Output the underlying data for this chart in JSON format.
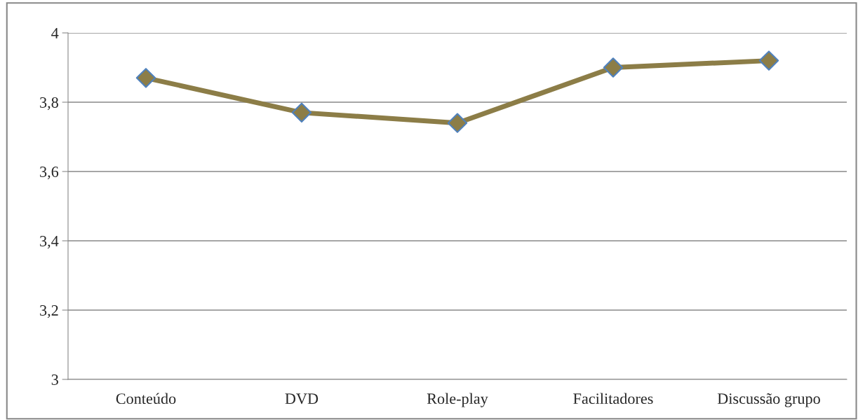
{
  "chart_data": {
    "type": "line",
    "categories": [
      "Conteúdo",
      "DVD",
      "Role-play",
      "Facilitadores",
      "Discussão grupo"
    ],
    "series": [
      {
        "color": "#8c7d47",
        "values": [
          3.87,
          3.77,
          3.74,
          3.9,
          3.92
        ]
      }
    ],
    "ylim": [
      3,
      4
    ],
    "yticks": [
      {
        "value": 3,
        "label": "3"
      },
      {
        "value": 3.2,
        "label": "3,2"
      },
      {
        "value": 3.4,
        "label": "3,4"
      },
      {
        "value": 3.6,
        "label": "3,6"
      },
      {
        "value": 3.8,
        "label": "3,8"
      },
      {
        "value": 4,
        "label": "4"
      }
    ],
    "grid": "y",
    "marker": "diamond",
    "line_style": "solid"
  }
}
